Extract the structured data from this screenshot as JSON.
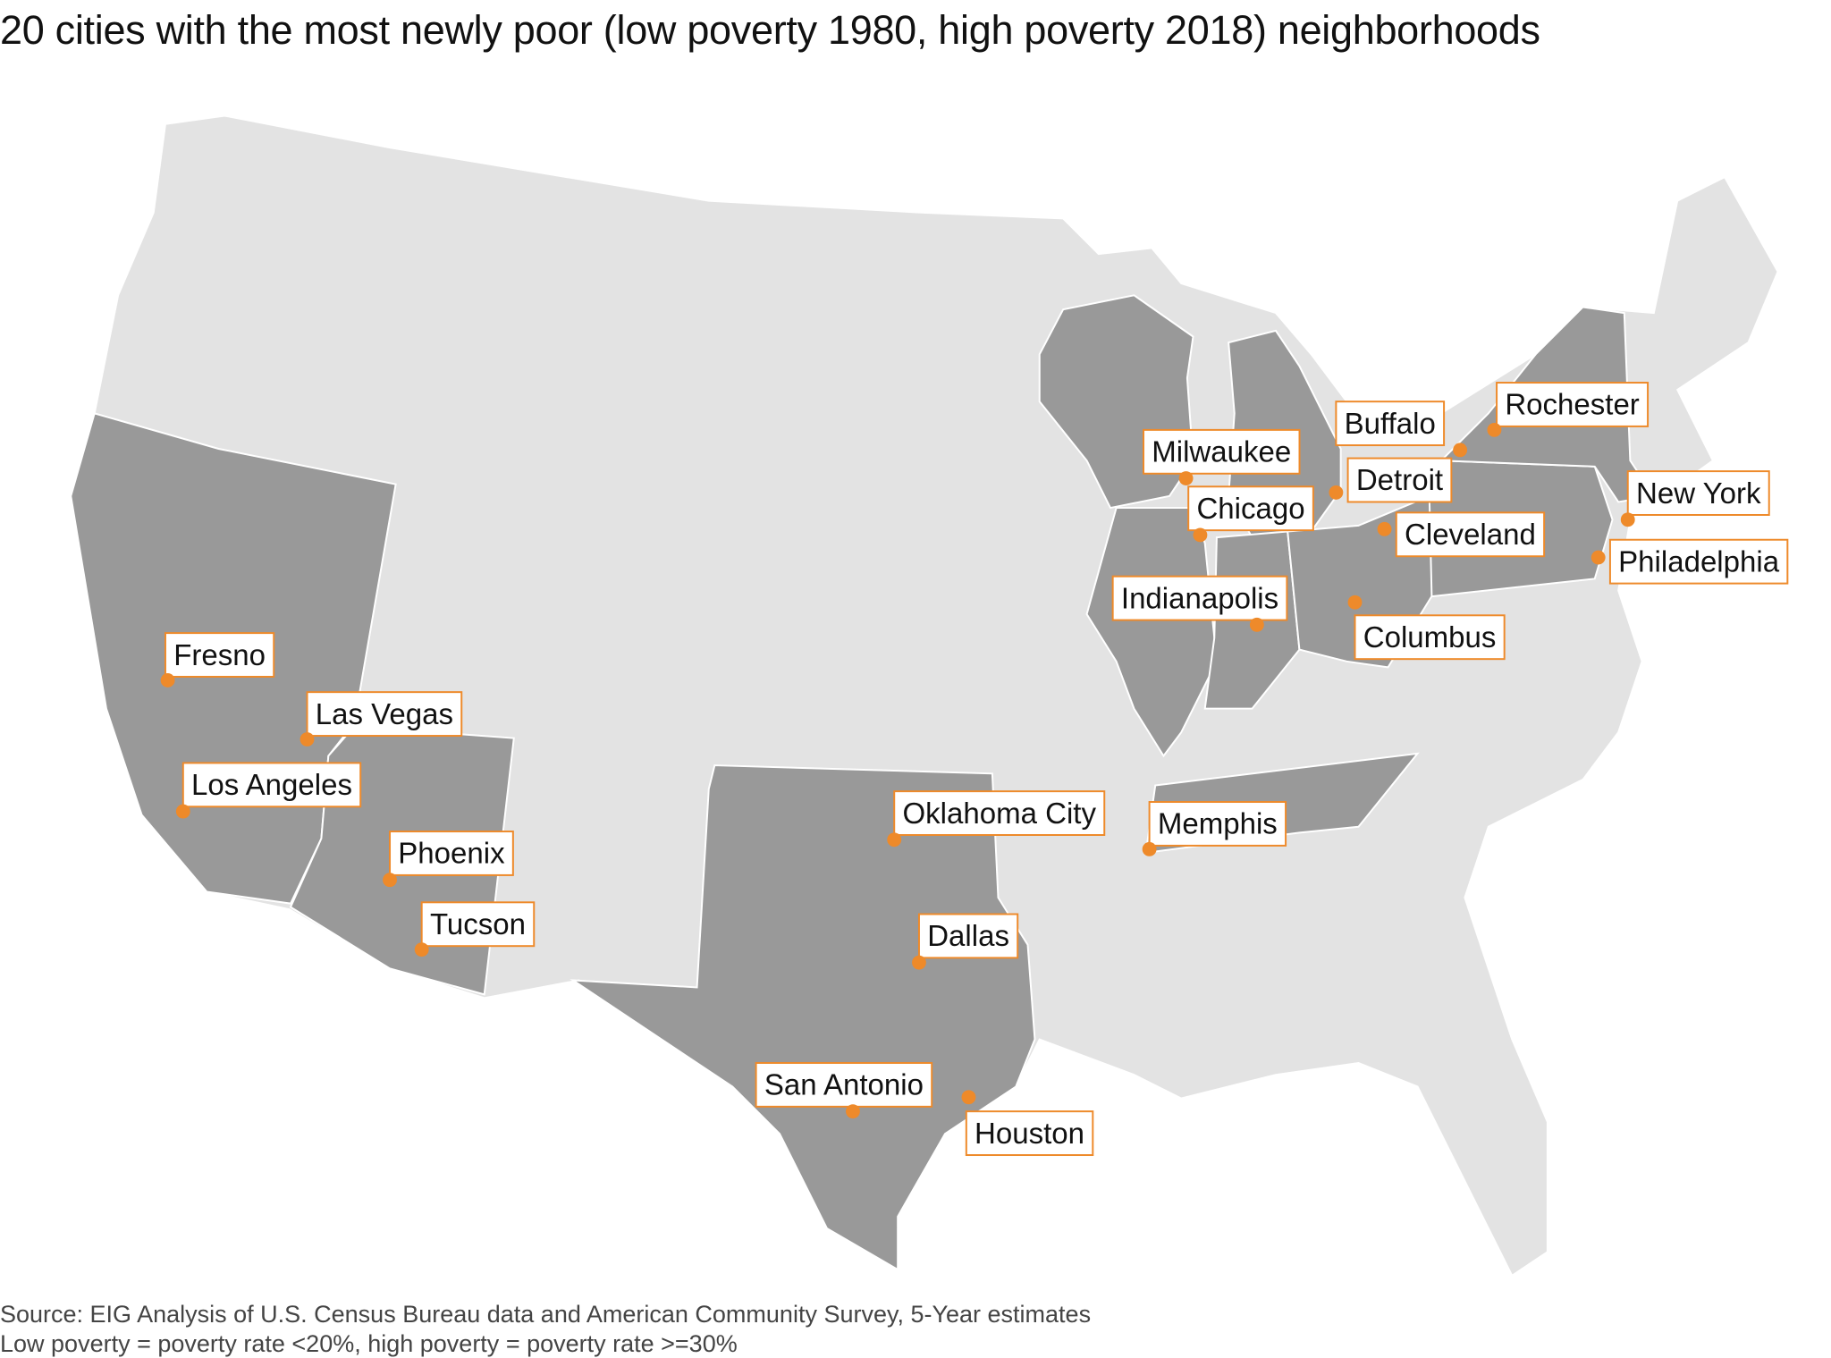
{
  "title": "20 cities with the most newly poor (low poverty 1980, high poverty 2018) neighborhoods",
  "source_lines": [
    "Source: EIG Analysis of U.S. Census Bureau data and American Community Survey, 5-Year estimates",
    "Low poverty = poverty rate <20%, high poverty = poverty rate >=30%"
  ],
  "colors": {
    "base_state": "#e3e3e3",
    "highlight_state": "#999999",
    "state_border": "#ffffff",
    "marker": "#ee8a2a",
    "label_border": "#ee8a2a"
  },
  "highlighted_states": [
    "California",
    "Nevada",
    "Arizona",
    "Texas",
    "Oklahoma",
    "Tennessee",
    "Wisconsin",
    "Michigan",
    "Illinois",
    "Indiana",
    "Ohio",
    "Pennsylvania",
    "New York"
  ],
  "cities": [
    {
      "name": "Fresno"
    },
    {
      "name": "Las Vegas"
    },
    {
      "name": "Los Angeles"
    },
    {
      "name": "Phoenix"
    },
    {
      "name": "Tucson"
    },
    {
      "name": "Oklahoma City"
    },
    {
      "name": "Dallas"
    },
    {
      "name": "San Antonio"
    },
    {
      "name": "Houston"
    },
    {
      "name": "Memphis"
    },
    {
      "name": "Milwaukee"
    },
    {
      "name": "Chicago"
    },
    {
      "name": "Indianapolis"
    },
    {
      "name": "Detroit"
    },
    {
      "name": "Buffalo"
    },
    {
      "name": "Rochester"
    },
    {
      "name": "Cleveland"
    },
    {
      "name": "Columbus"
    },
    {
      "name": "New York"
    },
    {
      "name": "Philadelphia"
    }
  ]
}
